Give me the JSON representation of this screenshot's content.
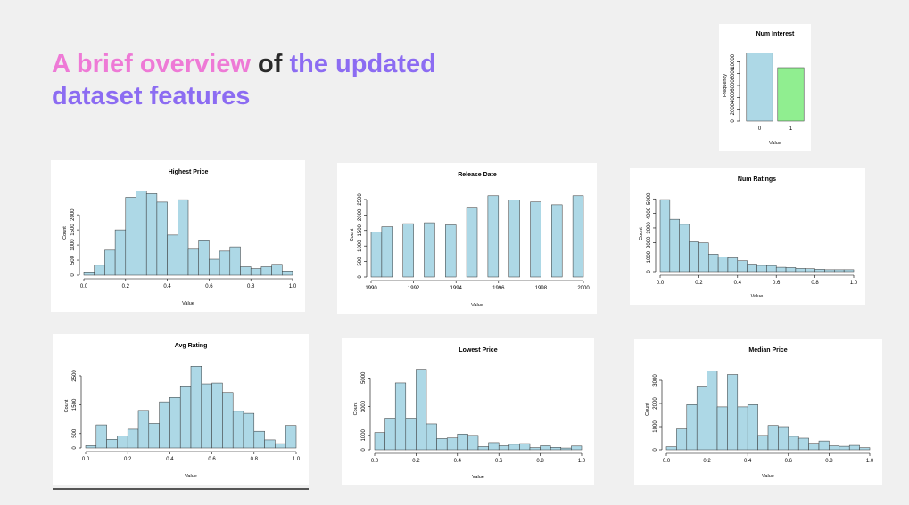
{
  "title_parts": [
    {
      "text": "A brief overview",
      "color": "#ee7ad6"
    },
    {
      "text": " of ",
      "color": "#2a2a2a"
    },
    {
      "text": "the updated dataset features",
      "color": "#8c6cf2"
    }
  ],
  "chart_data": [
    {
      "type": "bar",
      "title": "Num Interest",
      "xlabel": "Value",
      "ylabel": "Frequency",
      "categories": [
        "0",
        "1"
      ],
      "values": [
        11500,
        9000
      ],
      "colors": [
        "#add8e6",
        "#90ee90"
      ],
      "ylim": [
        0,
        12000
      ],
      "yticks": [
        0,
        2000,
        4000,
        6000,
        8000,
        10000
      ]
    },
    {
      "type": "histogram",
      "title": "Highest Price",
      "xlabel": "Value",
      "ylabel": "Count",
      "color": "#add8e6",
      "bins": [
        0,
        0.05,
        0.1,
        0.15,
        0.2,
        0.25,
        0.3,
        0.35,
        0.4,
        0.45,
        0.5,
        0.55,
        0.6,
        0.65,
        0.7,
        0.75,
        0.8,
        0.85,
        0.9,
        0.95,
        1
      ],
      "values": [
        110,
        330,
        830,
        1500,
        2580,
        2780,
        2700,
        2420,
        1330,
        2500,
        860,
        1140,
        530,
        800,
        940,
        280,
        220,
        280,
        360,
        140
      ],
      "xlim": [
        0,
        1
      ],
      "ylim": [
        0,
        2800
      ],
      "xticks": [
        {
          "value": 0,
          "label": "0.0"
        },
        0.2,
        0.4,
        0.6,
        0.8,
        {
          "value": 1,
          "label": "1.0"
        }
      ],
      "yticks": [
        0,
        500,
        1000,
        1500,
        2000
      ]
    },
    {
      "type": "histogram",
      "title": "Release Date",
      "xlabel": "Value",
      "ylabel": "Count",
      "color": "#add8e6",
      "bins": [
        1990,
        1990.5,
        1991,
        1991.5,
        1992,
        1992.5,
        1993,
        1993.5,
        1994,
        1994.5,
        1995,
        1995.5,
        1996,
        1996.5,
        1997,
        1997.5,
        1998,
        1998.5,
        1999,
        1999.5,
        2000
      ],
      "values": [
        1450,
        1620,
        0,
        1720,
        0,
        1750,
        0,
        1680,
        0,
        2250,
        0,
        2620,
        0,
        2480,
        0,
        2420,
        0,
        2330,
        0,
        2620
      ],
      "xlim": [
        1990,
        2000
      ],
      "ylim": [
        0,
        2700
      ],
      "xticks": [
        1990,
        1992,
        1994,
        1996,
        1998,
        2000
      ],
      "yticks": [
        0,
        500,
        1000,
        1500,
        2000,
        2500
      ]
    },
    {
      "type": "histogram",
      "title": "Num Ratings",
      "xlabel": "Value",
      "ylabel": "Count",
      "color": "#add8e6",
      "bins": [
        0,
        0.05,
        0.1,
        0.15,
        0.2,
        0.25,
        0.3,
        0.35,
        0.4,
        0.45,
        0.5,
        0.55,
        0.6,
        0.65,
        0.7,
        0.75,
        0.8,
        0.85,
        0.9,
        0.95,
        1
      ],
      "values": [
        4950,
        3600,
        3250,
        2050,
        1980,
        1200,
        1000,
        950,
        750,
        520,
        430,
        420,
        300,
        280,
        220,
        200,
        160,
        130,
        130,
        130
      ],
      "xlim": [
        0,
        1
      ],
      "ylim": [
        0,
        5200
      ],
      "xticks": [
        {
          "value": 0,
          "label": "0.0"
        },
        0.2,
        0.4,
        0.6,
        0.8,
        {
          "value": 1,
          "label": "1.0"
        }
      ],
      "yticks": [
        0,
        1000,
        2000,
        3000,
        4000,
        5000
      ]
    },
    {
      "type": "histogram",
      "title": "Avg Rating",
      "xlabel": "Value",
      "ylabel": "Count",
      "color": "#add8e6",
      "bins": [
        0,
        0.05,
        0.1,
        0.15,
        0.2,
        0.25,
        0.3,
        0.35,
        0.4,
        0.45,
        0.5,
        0.55,
        0.6,
        0.65,
        0.7,
        0.75,
        0.8,
        0.85,
        0.9,
        0.95,
        1
      ],
      "values": [
        80,
        800,
        300,
        420,
        650,
        1300,
        850,
        1600,
        1750,
        2150,
        2830,
        2220,
        2250,
        1920,
        1270,
        1200,
        580,
        280,
        150,
        780
      ],
      "xlim": [
        0,
        1
      ],
      "ylim": [
        0,
        2900
      ],
      "xticks": [
        {
          "value": 0,
          "label": "0.0"
        },
        0.2,
        0.4,
        0.6,
        0.8,
        {
          "value": 1,
          "label": "1.0"
        }
      ],
      "yticks": [
        0,
        500,
        1500,
        2500
      ]
    },
    {
      "type": "histogram",
      "title": "Lowest Price",
      "xlabel": "Value",
      "ylabel": "Count",
      "color": "#add8e6",
      "bins": [
        0,
        0.05,
        0.1,
        0.15,
        0.2,
        0.25,
        0.3,
        0.35,
        0.4,
        0.45,
        0.5,
        0.55,
        0.6,
        0.65,
        0.7,
        0.75,
        0.8,
        0.85,
        0.9,
        0.95,
        1
      ],
      "values": [
        1200,
        2200,
        4650,
        2200,
        5600,
        1800,
        780,
        820,
        1100,
        1000,
        220,
        500,
        280,
        380,
        430,
        150,
        280,
        170,
        120,
        260
      ],
      "xlim": [
        0,
        1
      ],
      "ylim": [
        0,
        5700
      ],
      "xticks": [
        {
          "value": 0,
          "label": "0.0"
        },
        0.2,
        0.4,
        0.6,
        0.8,
        {
          "value": 1,
          "label": "1.0"
        }
      ],
      "yticks": [
        0,
        1000,
        3000,
        5000
      ]
    },
    {
      "type": "histogram",
      "title": "Median Price",
      "xlabel": "Value",
      "ylabel": "Count",
      "color": "#add8e6",
      "bins": [
        0,
        0.05,
        0.1,
        0.15,
        0.2,
        0.25,
        0.3,
        0.35,
        0.4,
        0.45,
        0.5,
        0.55,
        0.6,
        0.65,
        0.7,
        0.75,
        0.8,
        0.85,
        0.9,
        0.95,
        1
      ],
      "values": [
        130,
        900,
        1950,
        2750,
        3400,
        1850,
        3250,
        1850,
        1950,
        620,
        1050,
        1000,
        580,
        500,
        280,
        380,
        170,
        150,
        190,
        90
      ],
      "xlim": [
        0,
        1
      ],
      "ylim": [
        0,
        3500
      ],
      "xticks": [
        {
          "value": 0,
          "label": "0.0"
        },
        0.2,
        0.4,
        0.6,
        0.8,
        {
          "value": 1,
          "label": "1.0"
        }
      ],
      "yticks": [
        0,
        1000,
        2000,
        3000
      ]
    }
  ]
}
